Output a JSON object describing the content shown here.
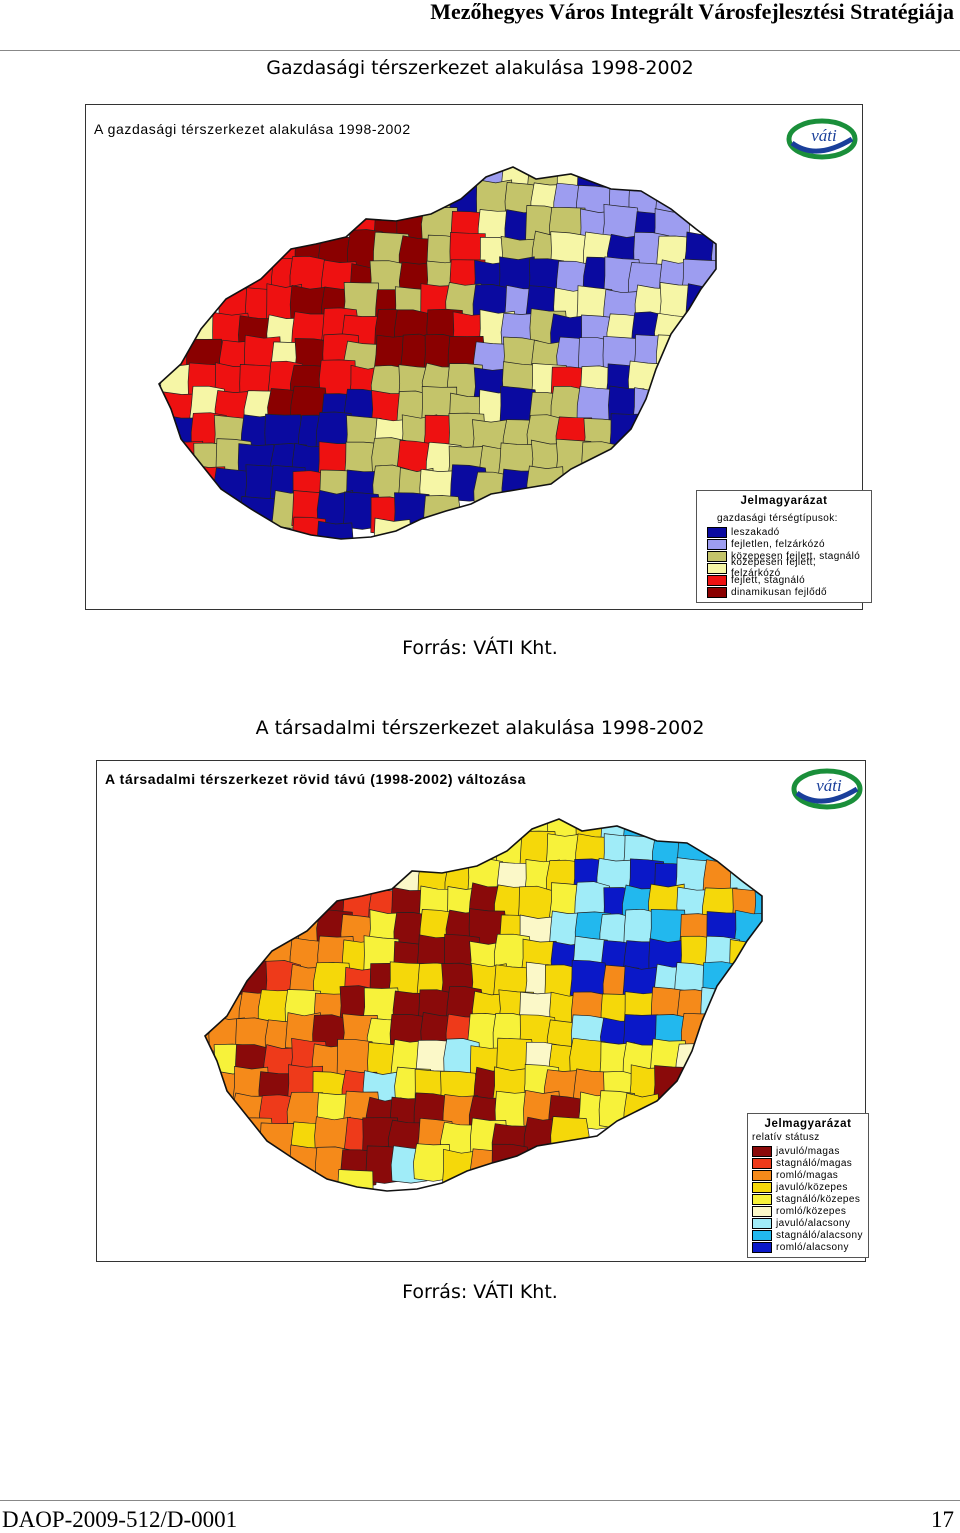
{
  "header": {
    "title": "Mezőhegyes Város Integrált Városfejlesztési Stratégiája"
  },
  "section1": {
    "caption": "Gazdasági térszerkezet alakulása 1998-2002",
    "map_title": "A gazdasági térszerkezet alakulása 1998-2002",
    "logo": "váti",
    "legend": {
      "title": "Jelmagyarázat",
      "subtitle": "gazdasági térségtípusok:",
      "items": [
        {
          "label": "leszakadó",
          "color": "#0a0aa0"
        },
        {
          "label": "fejletlen, felzárkózó",
          "color": "#9d9df0"
        },
        {
          "label": "közepesen fejlett, stagnáló",
          "color": "#c4c46a"
        },
        {
          "label": "közepesen fejlett, felzárkózó",
          "color": "#f6f6a6"
        },
        {
          "label": "fejlett, stagnáló",
          "color": "#ee1111"
        },
        {
          "label": "dinamikusan fejlődő",
          "color": "#8a0000"
        }
      ]
    },
    "source": "Forrás: VÁTI Kht."
  },
  "section2": {
    "caption": "A társadalmi térszerkezet alakulása 1998-2002",
    "map_title": "A társadalmi térszerkezet rövid távú (1998-2002) változása",
    "logo": "váti",
    "legend": {
      "title": "Jelmagyarázat",
      "subtitle": "relatív státusz",
      "items": [
        {
          "label": "javuló/magas",
          "color": "#8a0a0a"
        },
        {
          "label": "stagnáló/magas",
          "color": "#ee3a1a"
        },
        {
          "label": "romló/magas",
          "color": "#f58a1a"
        },
        {
          "label": "javuló/közepes",
          "color": "#f5d80a"
        },
        {
          "label": "stagnáló/közepes",
          "color": "#f7f23a"
        },
        {
          "label": "romló/közepes",
          "color": "#fbf8c8"
        },
        {
          "label": "javuló/alacsony",
          "color": "#a0ecf8"
        },
        {
          "label": "stagnáló/alacsony",
          "color": "#22b8ee"
        },
        {
          "label": "romló/alacsony",
          "color": "#0a18c8"
        }
      ]
    },
    "source": "Forrás: VÁTI Kht."
  },
  "footer": {
    "doc_id": "DAOP-2009-512/D-0001",
    "page_number": "17"
  }
}
